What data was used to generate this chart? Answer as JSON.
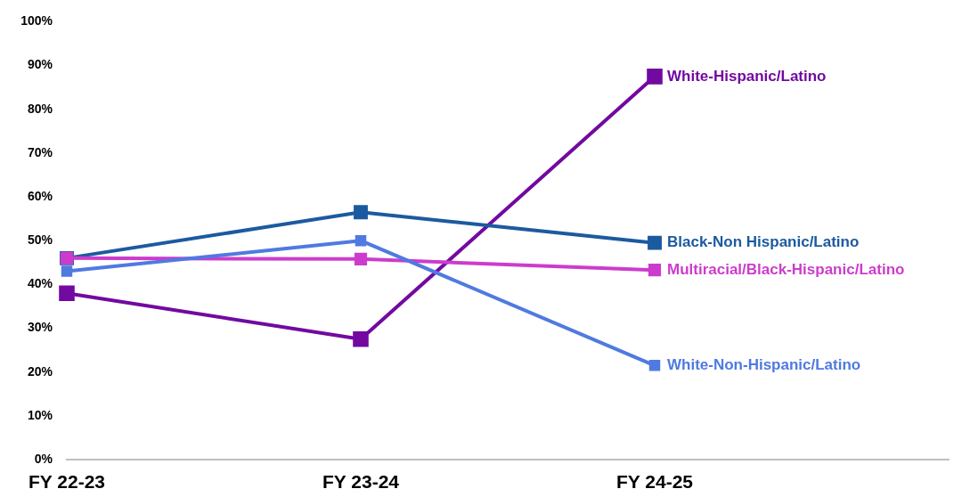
{
  "chart_data": {
    "type": "line",
    "categories": [
      "FY 22-23",
      "FY 23-24",
      "FY 24-25",
      null
    ],
    "series": [
      {
        "name": "White-Hispanic/Latino",
        "color": "#7209a0",
        "values": [
          38,
          27.5,
          87.5,
          null
        ]
      },
      {
        "name": "Black-Non Hispanic/Latino",
        "color": "#1c5aa0",
        "values": [
          46,
          56.5,
          49.5,
          null
        ]
      },
      {
        "name": "Multiracial/Black-Hispanic/Latino",
        "color": "#cc3ccc",
        "values": [
          46,
          45.8,
          43.3,
          null
        ]
      },
      {
        "name": "White-Non-Hispanic/Latino",
        "color": "#4f7ae0",
        "values": [
          43,
          50,
          21.5,
          null
        ]
      }
    ],
    "ylim": [
      0,
      100
    ],
    "yticks": [
      {
        "value": 0,
        "label": "0%"
      },
      {
        "value": 10,
        "label": "10%"
      },
      {
        "value": 20,
        "label": "20%"
      },
      {
        "value": 30,
        "label": "30%"
      },
      {
        "value": 40,
        "label": "40%"
      },
      {
        "value": 50,
        "label": "50%"
      },
      {
        "value": 60,
        "label": "60%"
      },
      {
        "value": 70,
        "label": "70%"
      },
      {
        "value": 80,
        "label": "80%"
      },
      {
        "value": 90,
        "label": "90%"
      },
      {
        "value": 100,
        "label": "100%"
      }
    ],
    "grid": false,
    "legend": false,
    "marker": "square",
    "line_style": "solid"
  }
}
